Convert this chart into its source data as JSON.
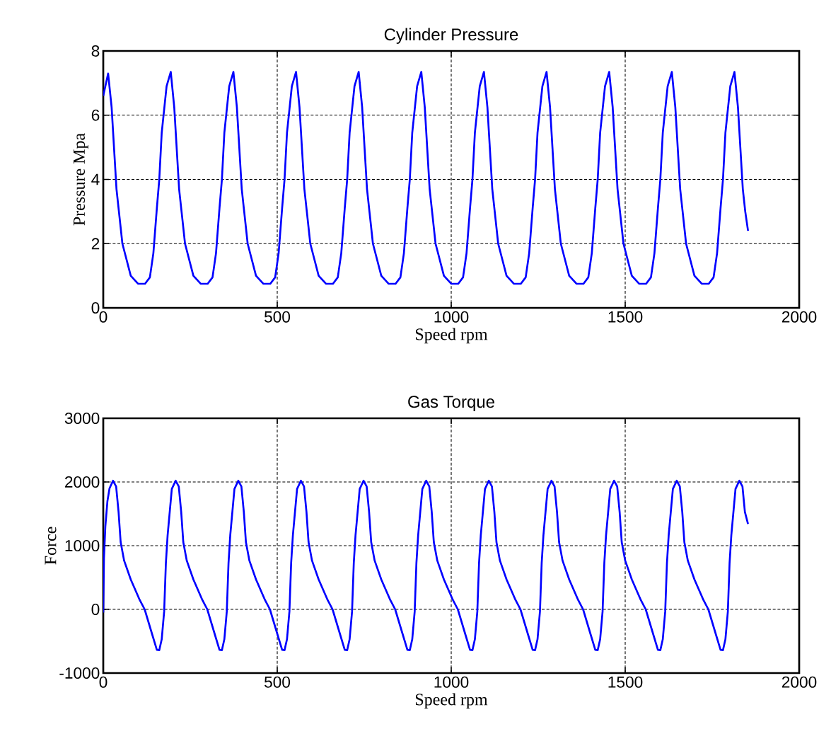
{
  "chart_data": [
    {
      "type": "line",
      "title": "Cylinder Pressure",
      "xlabel": "Speed rpm",
      "ylabel": "Pressure Mpa",
      "xlim": [
        0,
        2000
      ],
      "xticks": [
        0,
        500,
        1000,
        1500,
        2000
      ],
      "ylim": [
        0,
        8
      ],
      "yticks": [
        0,
        2,
        4,
        6,
        8
      ],
      "grid": true,
      "series": [
        {
          "color": "#0000ff",
          "x": [
            0,
            14,
            24,
            38,
            45,
            55,
            79,
            100,
            120,
            134,
            144,
            154,
            161,
            168,
            182,
            194,
            204,
            218,
            225,
            235,
            259,
            280,
            300,
            314,
            324,
            334,
            341,
            348,
            362,
            374,
            384,
            398,
            405,
            415,
            439,
            460,
            480,
            494,
            504,
            514,
            521,
            528,
            542,
            554,
            564,
            578,
            585,
            595,
            619,
            640,
            660,
            674,
            684,
            694,
            701,
            708,
            722,
            734,
            744,
            758,
            765,
            775,
            799,
            820,
            840,
            854,
            864,
            874,
            881,
            888,
            902,
            914,
            924,
            938,
            945,
            955,
            979,
            1000,
            1020,
            1034,
            1044,
            1054,
            1061,
            1068,
            1082,
            1094,
            1104,
            1118,
            1125,
            1135,
            1159,
            1180,
            1200,
            1214,
            1224,
            1234,
            1241,
            1248,
            1262,
            1274,
            1284,
            1298,
            1305,
            1315,
            1339,
            1360,
            1380,
            1394,
            1404,
            1414,
            1421,
            1428,
            1442,
            1454,
            1464,
            1478,
            1485,
            1495,
            1519,
            1540,
            1560,
            1574,
            1584,
            1594,
            1601,
            1608,
            1622,
            1634,
            1644,
            1658,
            1665,
            1675,
            1699,
            1720,
            1740,
            1754,
            1764,
            1774,
            1781,
            1788,
            1802,
            1814,
            1824,
            1838,
            1845,
            1853
          ],
          "values": [
            6.6,
            7.3,
            6.25,
            3.7,
            3.0,
            2.0,
            1.0,
            0.75,
            0.75,
            0.95,
            1.7,
            3.1,
            4.0,
            5.45,
            6.9,
            7.35,
            6.25,
            3.7,
            3.0,
            2.0,
            1.0,
            0.75,
            0.75,
            0.95,
            1.7,
            3.1,
            4.0,
            5.45,
            6.9,
            7.35,
            6.25,
            3.7,
            3.0,
            2.0,
            1.0,
            0.75,
            0.75,
            0.95,
            1.7,
            3.1,
            4.0,
            5.45,
            6.9,
            7.35,
            6.25,
            3.7,
            3.0,
            2.0,
            1.0,
            0.75,
            0.75,
            0.95,
            1.7,
            3.1,
            4.0,
            5.45,
            6.9,
            7.35,
            6.25,
            3.7,
            3.0,
            2.0,
            1.0,
            0.75,
            0.75,
            0.95,
            1.7,
            3.1,
            4.0,
            5.45,
            6.9,
            7.35,
            6.25,
            3.7,
            3.0,
            2.0,
            1.0,
            0.75,
            0.75,
            0.95,
            1.7,
            3.1,
            4.0,
            5.45,
            6.9,
            7.35,
            6.25,
            3.7,
            3.0,
            2.0,
            1.0,
            0.75,
            0.75,
            0.95,
            1.7,
            3.1,
            4.0,
            5.45,
            6.9,
            7.35,
            6.25,
            3.7,
            3.0,
            2.0,
            1.0,
            0.75,
            0.75,
            0.95,
            1.7,
            3.1,
            4.0,
            5.45,
            6.9,
            7.35,
            6.25,
            3.7,
            3.0,
            2.0,
            1.0,
            0.75,
            0.75,
            0.95,
            1.7,
            3.1,
            4.0,
            5.45,
            6.9,
            7.35,
            6.25,
            3.7,
            3.0,
            2.0,
            1.0,
            0.75,
            0.75,
            0.95,
            1.7,
            3.1,
            4.0,
            5.45,
            6.9,
            7.35,
            6.25,
            3.7,
            3.0,
            2.4
          ]
        }
      ]
    },
    {
      "type": "line",
      "title": "Gas Torque",
      "xlabel": "Speed rpm",
      "ylabel": "Force",
      "xlim": [
        0,
        2000
      ],
      "xticks": [
        0,
        500,
        1000,
        1500,
        2000
      ],
      "ylim": [
        -1000,
        3000
      ],
      "yticks": [
        -1000,
        0,
        1000,
        2000,
        3000
      ],
      "grid": true,
      "series": [
        {
          "color": "#0000ff",
          "x": [
            0,
            2,
            6,
            12,
            18,
            28,
            37,
            44,
            50,
            60,
            79,
            105,
            119,
            141,
            154,
            161,
            168,
            175,
            180,
            185,
            197,
            208,
            217,
            224,
            230,
            240,
            259,
            285,
            299,
            321,
            334,
            341,
            348,
            355,
            360,
            365,
            377,
            388,
            397,
            404,
            410,
            420,
            439,
            465,
            479,
            501,
            514,
            521,
            528,
            535,
            540,
            545,
            557,
            568,
            577,
            584,
            590,
            600,
            619,
            645,
            659,
            681,
            694,
            701,
            708,
            715,
            720,
            725,
            737,
            748,
            757,
            764,
            770,
            780,
            799,
            825,
            839,
            861,
            874,
            881,
            888,
            895,
            900,
            905,
            917,
            928,
            937,
            944,
            950,
            960,
            979,
            1005,
            1019,
            1041,
            1054,
            1061,
            1068,
            1075,
            1080,
            1085,
            1097,
            1108,
            1117,
            1124,
            1130,
            1140,
            1159,
            1185,
            1199,
            1221,
            1234,
            1241,
            1248,
            1255,
            1260,
            1265,
            1277,
            1288,
            1297,
            1304,
            1310,
            1320,
            1339,
            1365,
            1379,
            1401,
            1414,
            1421,
            1428,
            1435,
            1440,
            1445,
            1457,
            1468,
            1477,
            1484,
            1490,
            1500,
            1519,
            1545,
            1559,
            1581,
            1594,
            1601,
            1608,
            1615,
            1620,
            1625,
            1637,
            1648,
            1657,
            1664,
            1670,
            1680,
            1699,
            1725,
            1739,
            1761,
            1774,
            1781,
            1788,
            1795,
            1800,
            1805,
            1817,
            1828,
            1837,
            1844,
            1853
          ],
          "values": [
            -50,
            800,
            1300,
            1700,
            1900,
            2020,
            1930,
            1530,
            1055,
            765,
            470,
            145,
            0,
            -400,
            -635,
            -640,
            -470,
            -35,
            730,
            1165,
            1890,
            2020,
            1930,
            1530,
            1055,
            765,
            470,
            145,
            0,
            -400,
            -635,
            -640,
            -470,
            -35,
            730,
            1165,
            1890,
            2020,
            1930,
            1530,
            1055,
            765,
            470,
            145,
            0,
            -400,
            -635,
            -640,
            -470,
            -35,
            730,
            1165,
            1890,
            2020,
            1930,
            1530,
            1055,
            765,
            470,
            145,
            0,
            -400,
            -635,
            -640,
            -470,
            -35,
            730,
            1165,
            1890,
            2020,
            1930,
            1530,
            1055,
            765,
            470,
            145,
            0,
            -400,
            -635,
            -640,
            -470,
            -35,
            730,
            1165,
            1890,
            2020,
            1930,
            1530,
            1055,
            765,
            470,
            145,
            0,
            -400,
            -635,
            -640,
            -470,
            -35,
            730,
            1165,
            1890,
            2020,
            1930,
            1530,
            1055,
            765,
            470,
            145,
            0,
            -400,
            -635,
            -640,
            -470,
            -35,
            730,
            1165,
            1890,
            2020,
            1930,
            1530,
            1055,
            765,
            470,
            145,
            0,
            -400,
            -635,
            -640,
            -470,
            -35,
            730,
            1165,
            1890,
            2020,
            1930,
            1530,
            1055,
            765,
            470,
            145,
            0,
            -400,
            -635,
            -640,
            -470,
            -35,
            730,
            1165,
            1890,
            2020,
            1930,
            1530,
            1055,
            765,
            470,
            145,
            0,
            -400,
            -635,
            -640,
            -470,
            -35,
            730,
            1165,
            1890,
            2020,
            1930,
            1530,
            1340
          ]
        }
      ]
    }
  ]
}
